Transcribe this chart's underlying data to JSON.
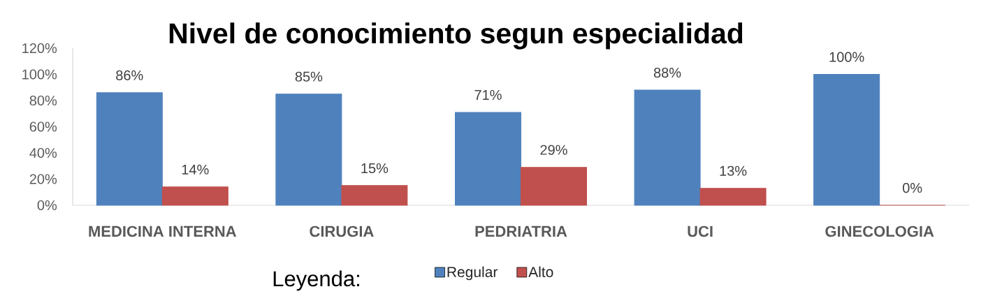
{
  "chart_data": {
    "type": "bar",
    "title": "Nivel de conocimiento segun especialidad",
    "categories": [
      "MEDICINA INTERNA",
      "CIRUGIA",
      "PEDRIATRIA",
      "UCI",
      "GINECOLOGIA"
    ],
    "series": [
      {
        "name": "Regular",
        "color": "#4f81bd",
        "values": [
          86,
          85,
          71,
          88,
          100
        ],
        "value_labels": [
          "86%",
          "85%",
          "71%",
          "88%",
          "100%"
        ]
      },
      {
        "name": "Alto",
        "color": "#c0504d",
        "values": [
          14,
          15,
          29,
          13,
          0
        ],
        "value_labels": [
          "14%",
          "15%",
          "29%",
          "13%",
          "0%"
        ]
      }
    ],
    "ylim": [
      0,
      120
    ],
    "yticks": [
      {
        "value": 0,
        "label": "0%"
      },
      {
        "value": 20,
        "label": "20%"
      },
      {
        "value": 40,
        "label": "40%"
      },
      {
        "value": 60,
        "label": "60%"
      },
      {
        "value": 80,
        "label": "80%"
      },
      {
        "value": 100,
        "label": "100%"
      },
      {
        "value": 120,
        "label": "120%"
      }
    ],
    "legend": "bottom",
    "annotations": [
      "Leyenda:"
    ]
  }
}
